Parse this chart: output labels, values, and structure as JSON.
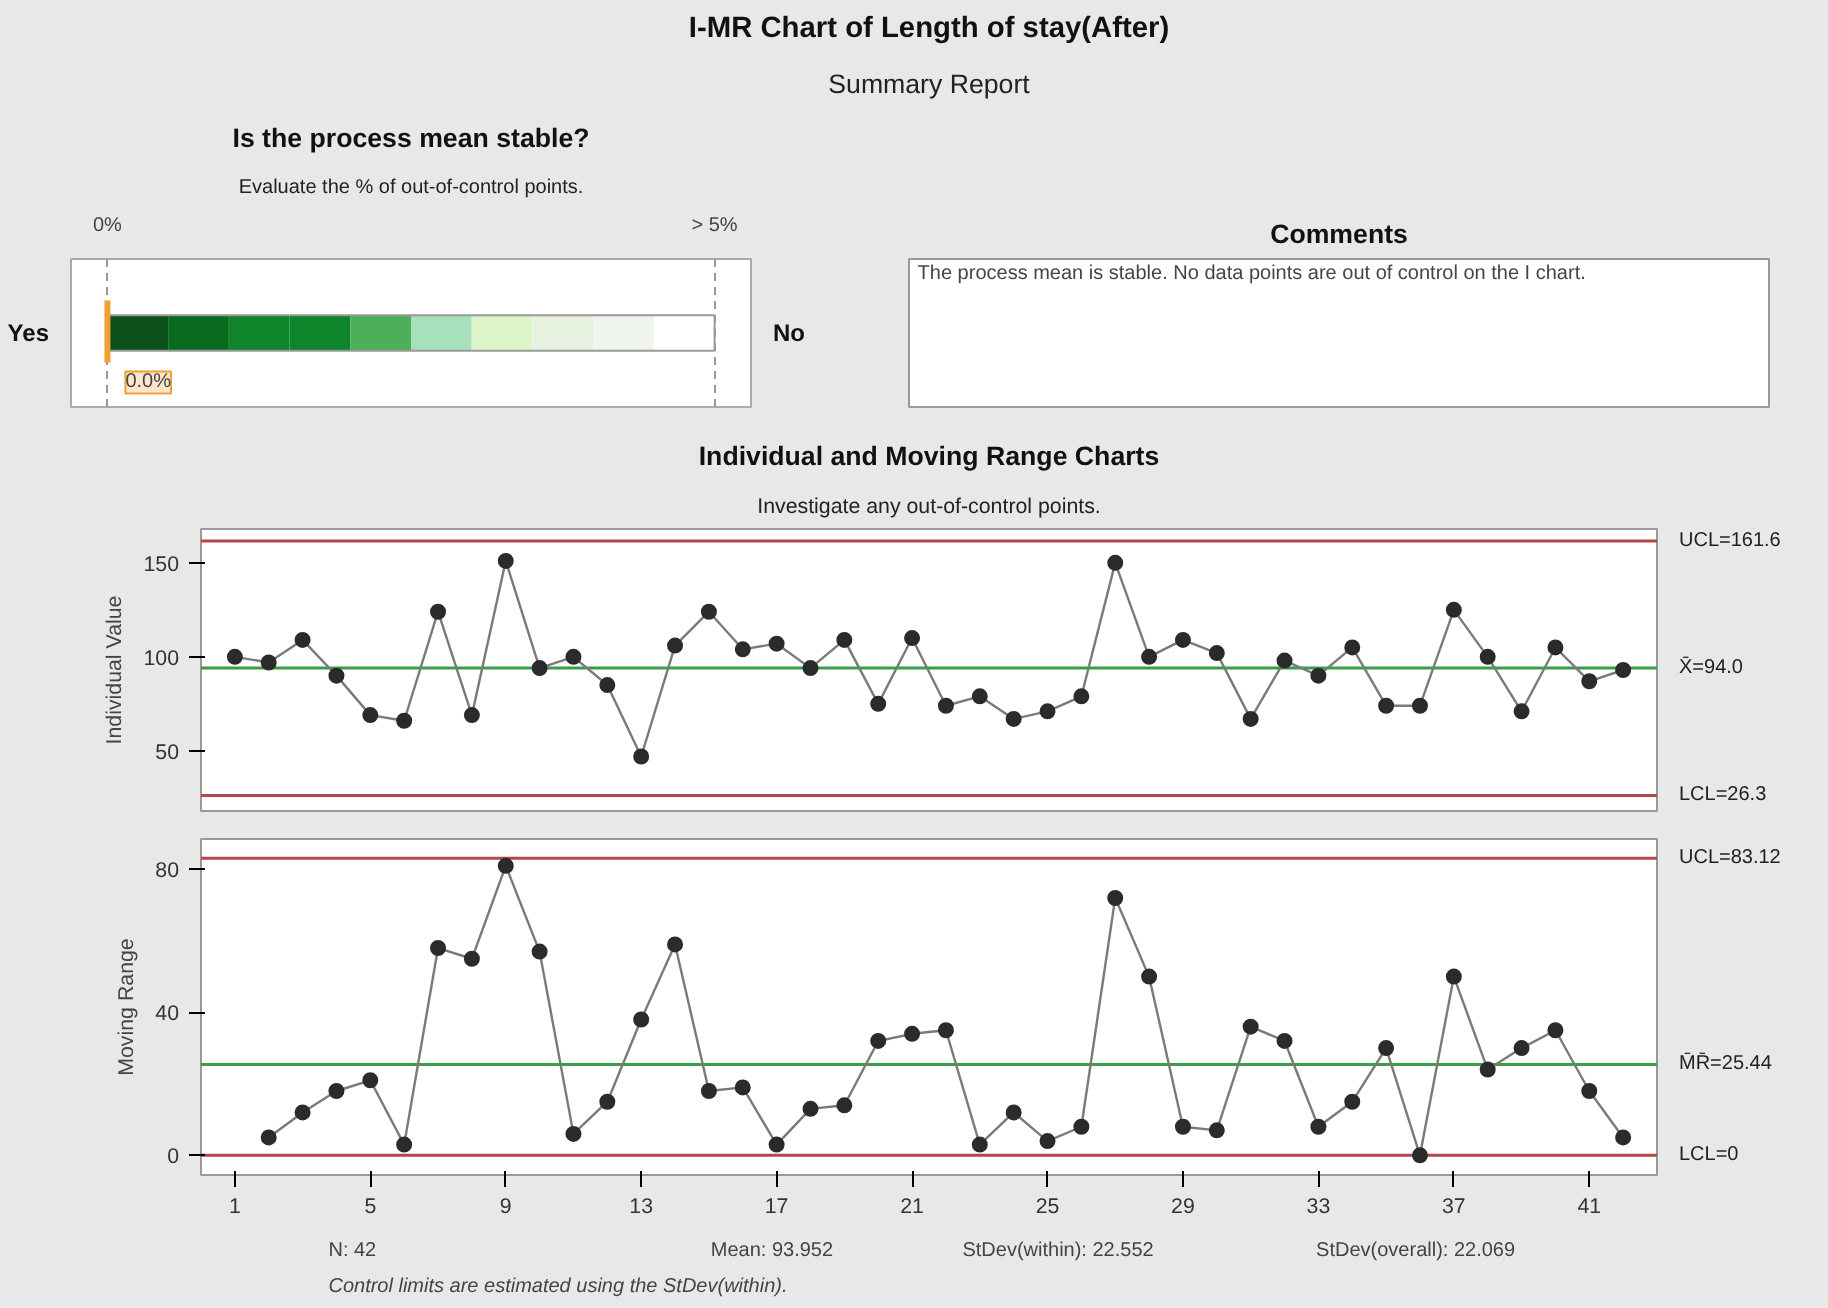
{
  "chart_data": [
    {
      "type": "other",
      "title": "I-MR Chart of Length of stay(After)",
      "subtitle": "Summary Report"
    },
    {
      "type": "other",
      "title": "Is the process mean stable?",
      "subtitle": "Evaluate the % of out-of-control points.",
      "values": [
        0.0
      ],
      "value_labels": [
        "0.0%"
      ],
      "annotations": [
        "0%",
        "> 5%",
        "Yes",
        "No"
      ]
    },
    {
      "type": "other",
      "title": "Comments",
      "annotations": [
        "The process mean is stable. No data points are out of control on the I chart."
      ]
    },
    {
      "type": "line",
      "title": "Individual and Moving Range Charts",
      "subtitle": "Investigate any out-of-control points.",
      "ylabel": "Individual Value",
      "marker": "circle",
      "line_style": "solid",
      "tick_labels": "y",
      "xlim": [
        0,
        43
      ],
      "ylim": [
        18,
        168
      ],
      "yticks": [
        50,
        100,
        150
      ],
      "series": [
        {
          "color": "#2b2b2b",
          "x": [
            1,
            2,
            3,
            4,
            5,
            6,
            7,
            8,
            9,
            10,
            11,
            12,
            13,
            14,
            15,
            16,
            17,
            18,
            19,
            20,
            21,
            22,
            23,
            24,
            25,
            26,
            27,
            28,
            29,
            30,
            31,
            32,
            33,
            34,
            35,
            36,
            37,
            38,
            39,
            40,
            41,
            42
          ],
          "values": [
            100,
            97,
            109,
            90,
            69,
            66,
            124,
            69,
            151,
            94,
            100,
            85,
            47,
            106,
            124,
            104,
            107,
            94,
            109,
            75,
            110,
            74,
            79,
            67,
            71,
            79,
            150,
            100,
            109,
            102,
            67,
            98,
            90,
            105,
            74,
            74,
            125,
            100,
            71,
            105,
            87,
            93
          ]
        }
      ],
      "ref_lines": [
        {
          "axis": "y",
          "value": 161.6,
          "label": "UCL=161.6",
          "color": "#b5474b"
        },
        {
          "axis": "y",
          "value": 94.0,
          "label": "X̄=94.0",
          "color": "#3a9e48"
        },
        {
          "axis": "y",
          "value": 26.3,
          "label": "LCL=26.3",
          "color": "#b5474b"
        }
      ]
    },
    {
      "type": "line",
      "ylabel": "Moving Range",
      "marker": "circle",
      "line_style": "solid",
      "xlim": [
        0,
        43
      ],
      "xticks": [
        1,
        5,
        9,
        13,
        17,
        21,
        25,
        29,
        33,
        37,
        41
      ],
      "ylim": [
        -5.5,
        88.5
      ],
      "yticks": [
        0,
        40,
        80
      ],
      "series": [
        {
          "color": "#2b2b2b",
          "x": [
            2,
            3,
            4,
            5,
            6,
            7,
            8,
            9,
            10,
            11,
            12,
            13,
            14,
            15,
            16,
            17,
            18,
            19,
            20,
            21,
            22,
            23,
            24,
            25,
            26,
            27,
            28,
            29,
            30,
            31,
            32,
            33,
            34,
            35,
            36,
            37,
            38,
            39,
            40,
            41,
            42
          ],
          "values": [
            5,
            12,
            18,
            21,
            3,
            58,
            55,
            81,
            57,
            6,
            15,
            38,
            59,
            18,
            19,
            3,
            13,
            14,
            32,
            34,
            35,
            3,
            12,
            4,
            8,
            72,
            50,
            8,
            7,
            36,
            32,
            8,
            15,
            30,
            0,
            50,
            24,
            30,
            35,
            18,
            5
          ]
        }
      ],
      "ref_lines": [
        {
          "axis": "y",
          "value": 83.12,
          "label": "UCL=83.12",
          "color": "#b5474b"
        },
        {
          "axis": "y",
          "value": 25.44,
          "label": "M̄R̄=25.44",
          "color": "#3a9e48"
        },
        {
          "axis": "y",
          "value": 0,
          "label": "LCL=0",
          "color": "#b5474b"
        }
      ],
      "annotations": [
        "N: 42",
        "Mean: 93.952",
        "StDev(within): 22.552",
        "StDev(overall): 22.069",
        "Control limits are estimated using the StDev(within)."
      ]
    }
  ]
}
